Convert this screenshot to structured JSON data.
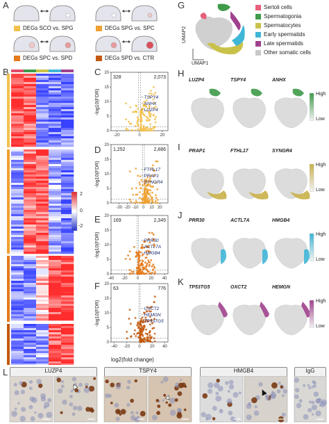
{
  "panels": {
    "A": "A",
    "B": "B",
    "C": "C",
    "D": "D",
    "E": "E",
    "F": "F",
    "G": "G",
    "H": "H",
    "I": "I",
    "J": "J",
    "K": "K",
    "L": "L"
  },
  "panel_a": {
    "comparisons": [
      {
        "label": "DEGs SCO vs. SPG",
        "color": "#f2c14e"
      },
      {
        "label": "DEGs SPG vs. SPC",
        "color": "#f0a030"
      },
      {
        "label": "DEGs SPC vs. SPD",
        "color": "#e57a1a"
      },
      {
        "label": "DEGs SPD vs. CTR",
        "color": "#c4580e"
      }
    ]
  },
  "panel_b": {
    "scale_ticks": [
      "2",
      "0",
      "-2"
    ],
    "bar_colors": [
      "#f2c14e",
      "#f0a030",
      "#e57a1a",
      "#c4580e"
    ],
    "column_colors": [
      "#e24a6a",
      "#3f9a49",
      "#c9c24a",
      "#3fb6d6",
      "#a0418e"
    ]
  },
  "volcano_common": {
    "ylabel": "-log10(FDR)",
    "xlabel": "log2(fold change)"
  },
  "chart_data": [
    {
      "type": "scatter",
      "panel": "C",
      "count_left": "328",
      "count_right": "2,073",
      "xlim": [
        -25,
        25
      ],
      "ylim": [
        0,
        20
      ],
      "xticks": [
        "-20",
        "0",
        "20"
      ],
      "yticks": [
        "0",
        "5",
        "10",
        "15",
        "20"
      ],
      "color": "#f2c14e",
      "genes": [
        "TSPY4",
        "ANHX",
        "LUZP4"
      ]
    },
    {
      "type": "scatter",
      "panel": "D",
      "count_left": "1,252",
      "count_right": "2,886",
      "xlim": [
        -40,
        30
      ],
      "ylim": [
        0,
        20
      ],
      "xticks": [
        "-30",
        "-20",
        "-10",
        "0",
        "10",
        "20"
      ],
      "yticks": [
        "0",
        "5",
        "10",
        "15",
        "20"
      ],
      "color": "#f0a030",
      "genes": [
        "FTHL17",
        "PRAP1",
        "SYNGR4"
      ]
    },
    {
      "type": "scatter",
      "panel": "E",
      "count_left": "169",
      "count_right": "2,345",
      "xlim": [
        -40,
        45
      ],
      "ylim": [
        0,
        20
      ],
      "xticks": [
        "-40",
        "-20",
        "0",
        "20",
        "40"
      ],
      "yticks": [
        "0",
        "5",
        "10",
        "15",
        "20"
      ],
      "color": "#e57a1a",
      "genes": [
        "PRR30",
        "ACTL7A",
        "HMGB4"
      ]
    },
    {
      "type": "scatter",
      "panel": "F",
      "count_left": "63",
      "count_right": "776",
      "xlim": [
        -45,
        45
      ],
      "ylim": [
        0,
        20
      ],
      "xticks": [
        "-40",
        "-20",
        "0",
        "20",
        "40"
      ],
      "yticks": [
        "0",
        "5",
        "10",
        "15",
        "20"
      ],
      "color": "#c4580e",
      "genes": [
        "OXCT2",
        "HEMGN",
        "TP53TG5"
      ]
    }
  ],
  "panel_g": {
    "legend": [
      {
        "label": "Sertoli cells",
        "color": "#e8607a"
      },
      {
        "label": "Spermatogonia",
        "color": "#3f9a49"
      },
      {
        "label": "Spermatocytes",
        "color": "#c9c24a"
      },
      {
        "label": "Early spermatids",
        "color": "#3fb6d6"
      },
      {
        "label": "Late spermatids",
        "color": "#a0418e"
      },
      {
        "label": "Other somatic cells",
        "color": "#c8c8c8"
      }
    ],
    "umap1": "UMAP1",
    "umap2": "UMAP2"
  },
  "umap_rows": [
    {
      "genes": [
        "LUZP4",
        "TSPY4",
        "ANHX"
      ],
      "color": "#3f9a49",
      "high": "High",
      "low": "Low"
    },
    {
      "genes": [
        "PRAP1",
        "FTHL17",
        "SYNGR4"
      ],
      "color": "#c9b04a",
      "high": "High",
      "low": "Low"
    },
    {
      "genes": [
        "PRR30",
        "ACTL7A",
        "HMGB4"
      ],
      "color": "#3fb6d6",
      "high": "High",
      "low": "Low"
    },
    {
      "genes": [
        "TP53TG5",
        "OXCT2",
        "HEMGN"
      ],
      "color": "#a0418e",
      "high": "High",
      "low": "Low"
    }
  ],
  "panel_l": {
    "tabs": [
      "LUZP4",
      "TSPY4",
      "HMGB4",
      "IgG"
    ]
  }
}
